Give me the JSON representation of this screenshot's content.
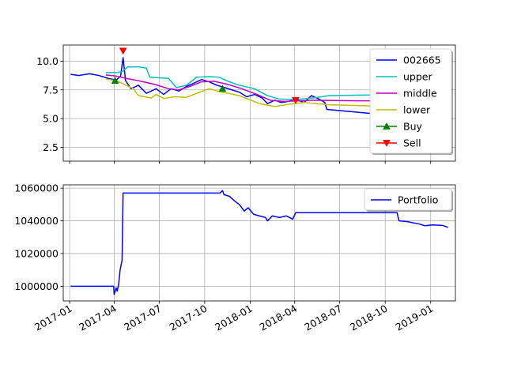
{
  "chart_data": [
    {
      "type": "line",
      "title": "",
      "xlabel": "",
      "ylabel": "",
      "xlim": [
        "2016-12-19",
        "2019-02-20"
      ],
      "ylim": [
        1.3,
        11.4
      ],
      "yticks": [
        2.5,
        5.0,
        7.5,
        10.0
      ],
      "ytick_labels": [
        "2.5",
        "5.0",
        "7.5",
        "10.0"
      ],
      "grid": true,
      "legend_position": "upper-right",
      "series": [
        {
          "name": "002665",
          "color": "#0000ff",
          "style": "line",
          "points": [
            [
              "2017-01-03",
              8.85
            ],
            [
              "2017-01-20",
              8.75
            ],
            [
              "2017-02-10",
              8.9
            ],
            [
              "2017-03-01",
              8.75
            ],
            [
              "2017-03-20",
              8.5
            ],
            [
              "2017-04-05",
              8.35
            ],
            [
              "2017-04-14",
              8.7
            ],
            [
              "2017-04-19",
              10.3
            ],
            [
              "2017-04-24",
              8.3
            ],
            [
              "2017-05-05",
              7.6
            ],
            [
              "2017-05-20",
              7.9
            ],
            [
              "2017-06-05",
              7.2
            ],
            [
              "2017-06-25",
              7.6
            ],
            [
              "2017-07-10",
              7.1
            ],
            [
              "2017-07-25",
              7.6
            ],
            [
              "2017-08-10",
              7.4
            ],
            [
              "2017-08-25",
              7.8
            ],
            [
              "2017-09-10",
              8.1
            ],
            [
              "2017-09-25",
              8.4
            ],
            [
              "2017-10-10",
              8.2
            ],
            [
              "2017-10-26",
              7.9
            ],
            [
              "2017-11-10",
              7.7
            ],
            [
              "2017-11-25",
              7.5
            ],
            [
              "2017-12-10",
              7.3
            ],
            [
              "2017-12-25",
              6.9
            ],
            [
              "2018-01-10",
              7.1
            ],
            [
              "2018-01-25",
              6.8
            ],
            [
              "2018-02-05",
              6.3
            ],
            [
              "2018-02-20",
              6.6
            ],
            [
              "2018-03-05",
              6.4
            ],
            [
              "2018-03-20",
              6.5
            ],
            [
              "2018-04-02",
              6.7
            ],
            [
              "2018-04-20",
              6.4
            ],
            [
              "2018-05-05",
              7.0
            ],
            [
              "2018-05-20",
              6.7
            ],
            [
              "2018-06-01",
              6.4
            ],
            [
              "2018-06-05",
              5.8
            ],
            [
              "2018-09-15",
              5.4
            ]
          ]
        },
        {
          "name": "upper",
          "color": "#00bfbf",
          "style": "line",
          "points": [
            [
              "2017-03-15",
              9.0
            ],
            [
              "2017-04-05",
              9.0
            ],
            [
              "2017-04-18",
              9.1
            ],
            [
              "2017-04-28",
              9.5
            ],
            [
              "2017-05-20",
              9.5
            ],
            [
              "2017-06-05",
              9.4
            ],
            [
              "2017-06-12",
              8.6
            ],
            [
              "2017-07-20",
              8.5
            ],
            [
              "2017-08-05",
              7.7
            ],
            [
              "2017-08-25",
              7.9
            ],
            [
              "2017-09-15",
              8.6
            ],
            [
              "2017-10-10",
              8.65
            ],
            [
              "2017-10-30",
              8.6
            ],
            [
              "2017-11-20",
              8.2
            ],
            [
              "2017-12-10",
              7.9
            ],
            [
              "2018-01-10",
              7.6
            ],
            [
              "2018-02-05",
              7.0
            ],
            [
              "2018-03-01",
              6.7
            ],
            [
              "2018-04-01",
              6.65
            ],
            [
              "2018-05-10",
              6.8
            ],
            [
              "2018-06-10",
              7.0
            ],
            [
              "2018-09-01",
              7.05
            ],
            [
              "2018-12-10",
              7.1
            ],
            [
              "2019-01-05",
              7.1
            ]
          ]
        },
        {
          "name": "middle",
          "color": "#bf00bf",
          "style": "line",
          "points": [
            [
              "2017-03-15",
              8.8
            ],
            [
              "2017-04-05",
              8.7
            ],
            [
              "2017-04-25",
              8.5
            ],
            [
              "2017-05-20",
              8.3
            ],
            [
              "2017-06-20",
              8.0
            ],
            [
              "2017-07-20",
              7.6
            ],
            [
              "2017-08-10",
              7.5
            ],
            [
              "2017-09-01",
              7.8
            ],
            [
              "2017-09-25",
              8.2
            ],
            [
              "2017-10-20",
              8.25
            ],
            [
              "2017-11-15",
              8.0
            ],
            [
              "2017-12-15",
              7.6
            ],
            [
              "2018-01-15",
              7.1
            ],
            [
              "2018-02-10",
              6.6
            ],
            [
              "2018-03-10",
              6.5
            ],
            [
              "2018-04-10",
              6.55
            ],
            [
              "2018-05-10",
              6.6
            ],
            [
              "2018-08-01",
              6.55
            ],
            [
              "2018-11-15",
              6.55
            ],
            [
              "2019-01-05",
              6.55
            ]
          ]
        },
        {
          "name": "lower",
          "color": "#bfbf00",
          "style": "line",
          "points": [
            [
              "2017-03-15",
              8.45
            ],
            [
              "2017-04-05",
              8.3
            ],
            [
              "2017-04-20",
              8.0
            ],
            [
              "2017-05-10",
              7.6
            ],
            [
              "2017-05-20",
              7.0
            ],
            [
              "2017-06-15",
              6.8
            ],
            [
              "2017-06-25",
              7.1
            ],
            [
              "2017-07-10",
              6.75
            ],
            [
              "2017-08-01",
              6.9
            ],
            [
              "2017-08-25",
              6.85
            ],
            [
              "2017-09-15",
              7.2
            ],
            [
              "2017-10-10",
              7.6
            ],
            [
              "2017-11-05",
              7.3
            ],
            [
              "2017-12-10",
              7.0
            ],
            [
              "2018-01-20",
              6.3
            ],
            [
              "2018-02-20",
              6.05
            ],
            [
              "2018-03-20",
              6.25
            ],
            [
              "2018-04-20",
              6.4
            ],
            [
              "2018-06-10",
              6.2
            ],
            [
              "2018-09-01",
              6.1
            ],
            [
              "2018-12-01",
              6.0
            ],
            [
              "2019-01-03",
              5.95
            ]
          ]
        },
        {
          "name": "Buy",
          "color": "#008000",
          "style": "marker-triangle-up",
          "points": [
            [
              "2017-04-03",
              8.3
            ],
            [
              "2017-11-06",
              7.6
            ]
          ]
        },
        {
          "name": "Sell",
          "color": "#ff0000",
          "style": "marker-triangle-down",
          "points": [
            [
              "2017-04-19",
              10.9
            ],
            [
              "2018-04-03",
              6.6
            ]
          ]
        }
      ]
    },
    {
      "type": "line",
      "title": "",
      "xlabel": "",
      "ylabel": "",
      "xlim": [
        "2016-12-19",
        "2019-02-20"
      ],
      "ylim": [
        991000,
        1062000
      ],
      "yticks": [
        1000000,
        1020000,
        1040000,
        1060000
      ],
      "ytick_labels": [
        "1000000",
        "1020000",
        "1040000",
        "1060000"
      ],
      "xticks": [
        "2017-01-01",
        "2017-04-01",
        "2017-07-01",
        "2017-10-01",
        "2018-01-01",
        "2018-04-01",
        "2018-07-01",
        "2018-10-01",
        "2019-01-01"
      ],
      "xtick_labels": [
        "2017-01",
        "2017-04",
        "2017-07",
        "2017-10",
        "2018-01",
        "2018-04",
        "2018-07",
        "2018-10",
        "2019-01"
      ],
      "grid": true,
      "legend_position": "upper-right",
      "series": [
        {
          "name": "Portfolio",
          "color": "#0000ff",
          "style": "line",
          "points": [
            [
              "2017-01-03",
              1000000
            ],
            [
              "2017-03-31",
              1000000
            ],
            [
              "2017-04-01",
              995000
            ],
            [
              "2017-04-05",
              999000
            ],
            [
              "2017-04-07",
              997000
            ],
            [
              "2017-04-10",
              1001000
            ],
            [
              "2017-04-13",
              1010000
            ],
            [
              "2017-04-17",
              1016000
            ],
            [
              "2017-04-19",
              1057000
            ],
            [
              "2017-07-01",
              1057000
            ],
            [
              "2017-10-01",
              1057000
            ],
            [
              "2017-11-01",
              1057000
            ],
            [
              "2017-11-06",
              1058500
            ],
            [
              "2017-11-09",
              1056000
            ],
            [
              "2017-11-20",
              1055000
            ],
            [
              "2017-12-01",
              1052000
            ],
            [
              "2017-12-10",
              1050000
            ],
            [
              "2017-12-20",
              1046000
            ],
            [
              "2017-12-28",
              1048000
            ],
            [
              "2018-01-08",
              1044000
            ],
            [
              "2018-01-20",
              1043000
            ],
            [
              "2018-02-01",
              1042000
            ],
            [
              "2018-02-05",
              1040000
            ],
            [
              "2018-02-15",
              1043000
            ],
            [
              "2018-03-01",
              1042000
            ],
            [
              "2018-03-15",
              1043000
            ],
            [
              "2018-03-28",
              1041000
            ],
            [
              "2018-04-03",
              1045000
            ],
            [
              "2018-07-01",
              1045000
            ],
            [
              "2018-10-01",
              1045000
            ],
            [
              "2018-10-25",
              1045000
            ],
            [
              "2018-10-29",
              1040000
            ],
            [
              "2018-11-15",
              1039500
            ],
            [
              "2018-12-10",
              1038000
            ],
            [
              "2018-12-20",
              1037000
            ],
            [
              "2019-01-05",
              1037500
            ],
            [
              "2019-01-25",
              1037200
            ],
            [
              "2019-02-05",
              1036000
            ]
          ]
        }
      ]
    }
  ]
}
